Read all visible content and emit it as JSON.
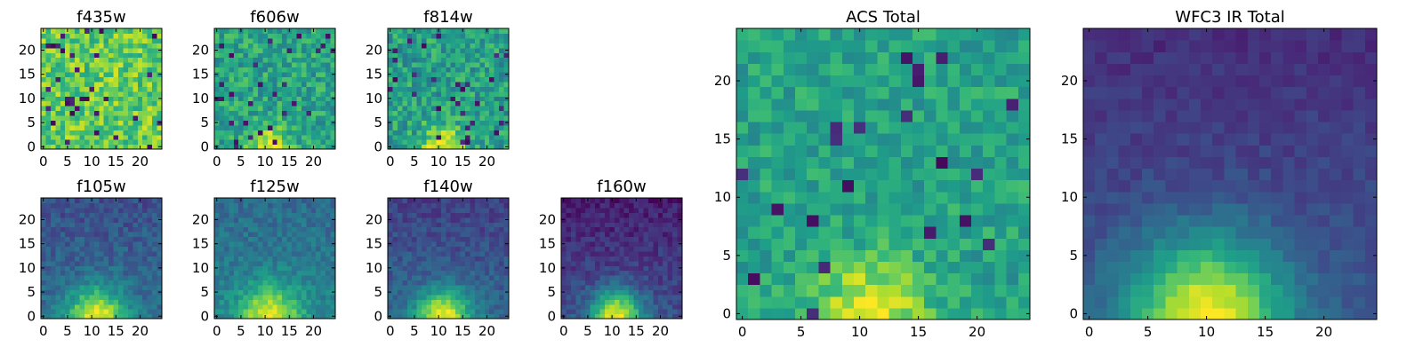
{
  "figure": {
    "colormap": "viridis",
    "colormap_stops": [
      "#440154",
      "#482878",
      "#3e4989",
      "#31688e",
      "#26828e",
      "#1f9e89",
      "#35b779",
      "#6ece58",
      "#b5de2b",
      "#fde725"
    ],
    "frame_color": "#000000"
  },
  "chart_data": [
    {
      "type": "heatmap",
      "title": "f435w",
      "grid_size": 25,
      "xlim": [
        -0.5,
        24.5
      ],
      "ylim": [
        -0.5,
        24.5
      ],
      "xticks": [
        0,
        5,
        10,
        15,
        20
      ],
      "xtick_labels": [
        "0",
        "5",
        "10",
        "15",
        "20"
      ],
      "yticks": [
        0,
        5,
        10,
        15,
        20
      ],
      "ytick_labels": [
        "0",
        "5",
        "10",
        "15",
        "20"
      ],
      "field": {
        "base": 0.76,
        "noise": 0.18,
        "seed": 11,
        "blob_center": [
          11,
          0
        ],
        "blob_peak": 0.0,
        "blob_sigma": 3.5,
        "top_dim": 0.0,
        "dark_fraction": 0.05
      }
    },
    {
      "type": "heatmap",
      "title": "f606w",
      "grid_size": 25,
      "xlim": [
        -0.5,
        24.5
      ],
      "ylim": [
        -0.5,
        24.5
      ],
      "xticks": [
        0,
        5,
        10,
        15,
        20
      ],
      "xtick_labels": [
        "0",
        "5",
        "10",
        "15",
        "20"
      ],
      "yticks": [
        0,
        5,
        10,
        15,
        20
      ],
      "ytick_labels": [
        "0",
        "5",
        "10",
        "15",
        "20"
      ],
      "field": {
        "base": 0.58,
        "noise": 0.16,
        "seed": 23,
        "blob_center": [
          11,
          0
        ],
        "blob_peak": 0.42,
        "blob_sigma": 2.8,
        "top_dim": 0.0,
        "dark_fraction": 0.04
      }
    },
    {
      "type": "heatmap",
      "title": "f814w",
      "grid_size": 25,
      "xlim": [
        -0.5,
        24.5
      ],
      "ylim": [
        -0.5,
        24.5
      ],
      "xticks": [
        0,
        5,
        10,
        15,
        20
      ],
      "xtick_labels": [
        "0",
        "5",
        "10",
        "15",
        "20"
      ],
      "yticks": [
        0,
        5,
        10,
        15,
        20
      ],
      "ytick_labels": [
        "0",
        "5",
        "10",
        "15",
        "20"
      ],
      "field": {
        "base": 0.56,
        "noise": 0.17,
        "seed": 37,
        "blob_center": [
          11,
          0
        ],
        "blob_peak": 0.45,
        "blob_sigma": 3.0,
        "top_dim": 0.0,
        "dark_fraction": 0.04
      }
    },
    {
      "type": "heatmap",
      "title": "f105w",
      "grid_size": 25,
      "xlim": [
        -0.5,
        24.5
      ],
      "ylim": [
        -0.5,
        24.5
      ],
      "xticks": [
        0,
        5,
        10,
        15,
        20
      ],
      "xtick_labels": [
        "0",
        "5",
        "10",
        "15",
        "20"
      ],
      "yticks": [
        0,
        5,
        10,
        15,
        20
      ],
      "ytick_labels": [
        "0",
        "5",
        "10",
        "15",
        "20"
      ],
      "field": {
        "base": 0.36,
        "noise": 0.09,
        "seed": 41,
        "blob_center": [
          11,
          0
        ],
        "blob_peak": 0.62,
        "blob_sigma": 4.2,
        "top_dim": 0.12,
        "dark_fraction": 0.0
      }
    },
    {
      "type": "heatmap",
      "title": "f125w",
      "grid_size": 25,
      "xlim": [
        -0.5,
        24.5
      ],
      "ylim": [
        -0.5,
        24.5
      ],
      "xticks": [
        0,
        5,
        10,
        15,
        20
      ],
      "xtick_labels": [
        "0",
        "5",
        "10",
        "15",
        "20"
      ],
      "yticks": [
        0,
        5,
        10,
        15,
        20
      ],
      "ytick_labels": [
        "0",
        "5",
        "10",
        "15",
        "20"
      ],
      "field": {
        "base": 0.45,
        "noise": 0.09,
        "seed": 53,
        "blob_center": [
          11,
          0
        ],
        "blob_peak": 0.52,
        "blob_sigma": 4.4,
        "top_dim": 0.1,
        "dark_fraction": 0.0
      }
    },
    {
      "type": "heatmap",
      "title": "f140w",
      "grid_size": 25,
      "xlim": [
        -0.5,
        24.5
      ],
      "ylim": [
        -0.5,
        24.5
      ],
      "xticks": [
        0,
        5,
        10,
        15,
        20
      ],
      "xtick_labels": [
        "0",
        "5",
        "10",
        "15",
        "20"
      ],
      "yticks": [
        0,
        5,
        10,
        15,
        20
      ],
      "ytick_labels": [
        "0",
        "5",
        "10",
        "15",
        "20"
      ],
      "field": {
        "base": 0.33,
        "noise": 0.08,
        "seed": 67,
        "blob_center": [
          11,
          0
        ],
        "blob_peak": 0.65,
        "blob_sigma": 4.0,
        "top_dim": 0.14,
        "dark_fraction": 0.0
      }
    },
    {
      "type": "heatmap",
      "title": "f160w",
      "grid_size": 25,
      "xlim": [
        -0.5,
        24.5
      ],
      "ylim": [
        -0.5,
        24.5
      ],
      "xticks": [
        0,
        5,
        10,
        15,
        20
      ],
      "xtick_labels": [
        "0",
        "5",
        "10",
        "15",
        "20"
      ],
      "yticks": [
        0,
        5,
        10,
        15,
        20
      ],
      "ytick_labels": [
        "0",
        "5",
        "10",
        "15",
        "20"
      ],
      "field": {
        "base": 0.24,
        "noise": 0.08,
        "seed": 79,
        "blob_center": [
          11,
          0
        ],
        "blob_peak": 0.74,
        "blob_sigma": 3.8,
        "top_dim": 0.16,
        "dark_fraction": 0.0
      }
    },
    {
      "type": "heatmap",
      "title": "ACS Total",
      "grid_size": 25,
      "xlim": [
        -0.5,
        24.5
      ],
      "ylim": [
        -0.5,
        24.5
      ],
      "xticks": [
        0,
        5,
        10,
        15,
        20
      ],
      "xtick_labels": [
        "0",
        "5",
        "10",
        "15",
        "20"
      ],
      "yticks": [
        0,
        5,
        10,
        15,
        20
      ],
      "ytick_labels": [
        "0",
        "5",
        "10",
        "15",
        "20"
      ],
      "field": {
        "base": 0.58,
        "noise": 0.12,
        "seed": 97,
        "blob_center": [
          11,
          0
        ],
        "blob_peak": 0.4,
        "blob_sigma": 3.2,
        "top_dim": 0.0,
        "dark_fraction": 0.035
      }
    },
    {
      "type": "heatmap",
      "title": "WFC3 IR Total",
      "grid_size": 25,
      "xlim": [
        -0.5,
        24.5
      ],
      "ylim": [
        -0.5,
        24.5
      ],
      "xticks": [
        0,
        5,
        10,
        15,
        20
      ],
      "xtick_labels": [
        "0",
        "5",
        "10",
        "15",
        "20"
      ],
      "yticks": [
        0,
        5,
        10,
        15,
        20
      ],
      "ytick_labels": [
        "0",
        "5",
        "10",
        "15",
        "20"
      ],
      "field": {
        "base": 0.27,
        "noise": 0.05,
        "seed": 113,
        "blob_center": [
          10,
          0
        ],
        "blob_peak": 0.72,
        "blob_sigma": 4.6,
        "top_dim": 0.14,
        "dark_fraction": 0.0
      }
    }
  ]
}
